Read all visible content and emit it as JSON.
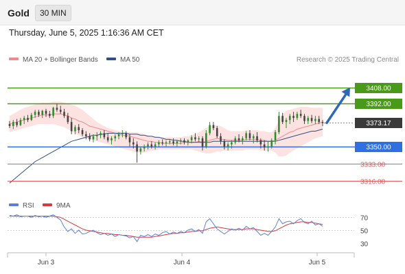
{
  "header": {
    "instrument": "Gold",
    "timeframe": "30 MIN"
  },
  "datetime": "Thursday, June 5, 2025 1:16:36 AM CET",
  "legend": {
    "bollinger": "MA 20 + Bollinger Bands",
    "ma50": "MA 50",
    "rsi": "RSI",
    "ma9": "9MA"
  },
  "watermark": "Research © 2025 Trading Central",
  "colors": {
    "up": "#2e8b2e",
    "down": "#444444",
    "resistance": "#4a9a1a",
    "support": "#2f6fe0",
    "lower_support": "#e05a5a",
    "bollinger_fill": "#fde2e2",
    "ma20": "#f08a8a",
    "ma50": "#2d4f86",
    "rsi": "#5b7fd9",
    "ma9": "#d63a3a",
    "arrow": "#2f68b7"
  },
  "chart_data": [
    {
      "type": "candlestick",
      "x_ticks": [
        "Jun 3",
        "Jun 4",
        "Jun 5"
      ],
      "ylim": [
        3302,
        3430
      ],
      "last_price": "3373.17",
      "levels": [
        {
          "value": 3408,
          "label": "3408.00",
          "kind": "resistance"
        },
        {
          "value": 3392,
          "label": "3392.00",
          "kind": "resistance"
        },
        {
          "value": 3373.17,
          "label": "3373.17",
          "kind": "last"
        },
        {
          "value": 3350,
          "label": "3350.00",
          "kind": "support"
        },
        {
          "value": 3333,
          "label": "3333.00",
          "kind": "lower_support"
        },
        {
          "value": 3316,
          "label": "3316.00",
          "kind": "lower_support"
        }
      ],
      "projection": {
        "from": 3373.17,
        "to": 3408
      },
      "candles": [
        [
          3372,
          3375,
          3368,
          3370
        ],
        [
          3370,
          3376,
          3367,
          3374
        ],
        [
          3374,
          3377,
          3369,
          3371
        ],
        [
          3371,
          3378,
          3370,
          3376
        ],
        [
          3376,
          3380,
          3372,
          3378
        ],
        [
          3378,
          3381,
          3374,
          3376
        ],
        [
          3376,
          3383,
          3375,
          3381
        ],
        [
          3381,
          3386,
          3378,
          3384
        ],
        [
          3384,
          3386,
          3379,
          3381
        ],
        [
          3381,
          3386,
          3378,
          3385
        ],
        [
          3385,
          3387,
          3379,
          3382
        ],
        [
          3382,
          3385,
          3378,
          3380
        ],
        [
          3380,
          3389,
          3378,
          3388
        ],
        [
          3388,
          3392,
          3384,
          3386
        ],
        [
          3386,
          3390,
          3382,
          3384
        ],
        [
          3384,
          3387,
          3378,
          3380
        ],
        [
          3380,
          3383,
          3372,
          3374
        ],
        [
          3374,
          3378,
          3362,
          3365
        ],
        [
          3365,
          3371,
          3362,
          3369
        ],
        [
          3369,
          3372,
          3363,
          3366
        ],
        [
          3366,
          3368,
          3360,
          3362
        ],
        [
          3362,
          3365,
          3357,
          3360
        ],
        [
          3360,
          3363,
          3355,
          3357
        ],
        [
          3357,
          3362,
          3354,
          3360
        ],
        [
          3360,
          3364,
          3356,
          3361
        ],
        [
          3361,
          3365,
          3358,
          3363
        ],
        [
          3363,
          3366,
          3357,
          3359
        ],
        [
          3359,
          3363,
          3354,
          3356
        ],
        [
          3356,
          3360,
          3352,
          3358
        ],
        [
          3358,
          3362,
          3355,
          3360
        ],
        [
          3360,
          3364,
          3357,
          3362
        ],
        [
          3362,
          3366,
          3359,
          3363
        ],
        [
          3363,
          3365,
          3357,
          3359
        ],
        [
          3359,
          3362,
          3350,
          3354
        ],
        [
          3354,
          3358,
          3348,
          3352
        ],
        [
          3352,
          3355,
          3334,
          3345
        ],
        [
          3345,
          3350,
          3342,
          3348
        ],
        [
          3348,
          3352,
          3345,
          3350
        ],
        [
          3350,
          3354,
          3347,
          3352
        ],
        [
          3352,
          3355,
          3348,
          3350
        ],
        [
          3350,
          3354,
          3347,
          3352
        ],
        [
          3352,
          3356,
          3349,
          3354
        ],
        [
          3354,
          3357,
          3351,
          3353
        ],
        [
          3353,
          3356,
          3350,
          3354
        ],
        [
          3354,
          3357,
          3352,
          3355
        ],
        [
          3355,
          3358,
          3351,
          3353
        ],
        [
          3353,
          3356,
          3350,
          3355
        ],
        [
          3355,
          3358,
          3352,
          3356
        ],
        [
          3356,
          3358,
          3352,
          3354
        ],
        [
          3354,
          3357,
          3351,
          3356
        ],
        [
          3356,
          3361,
          3353,
          3359
        ],
        [
          3359,
          3363,
          3355,
          3357
        ],
        [
          3357,
          3360,
          3354,
          3358
        ],
        [
          3358,
          3360,
          3346,
          3350
        ],
        [
          3350,
          3366,
          3348,
          3363
        ],
        [
          3363,
          3374,
          3361,
          3371
        ],
        [
          3371,
          3374,
          3366,
          3368
        ],
        [
          3368,
          3370,
          3358,
          3360
        ],
        [
          3360,
          3363,
          3352,
          3355
        ],
        [
          3355,
          3357,
          3347,
          3350
        ],
        [
          3350,
          3354,
          3346,
          3352
        ],
        [
          3352,
          3356,
          3348,
          3354
        ],
        [
          3354,
          3360,
          3352,
          3358
        ],
        [
          3358,
          3362,
          3354,
          3356
        ],
        [
          3356,
          3360,
          3352,
          3358
        ],
        [
          3358,
          3365,
          3356,
          3363
        ],
        [
          3363,
          3366,
          3356,
          3358
        ],
        [
          3358,
          3362,
          3353,
          3360
        ],
        [
          3360,
          3364,
          3354,
          3356
        ],
        [
          3356,
          3358,
          3348,
          3352
        ],
        [
          3352,
          3356,
          3346,
          3349
        ],
        [
          3349,
          3355,
          3345,
          3350
        ],
        [
          3350,
          3358,
          3348,
          3356
        ],
        [
          3356,
          3366,
          3352,
          3364
        ],
        [
          3364,
          3384,
          3362,
          3380
        ],
        [
          3380,
          3383,
          3372,
          3374
        ],
        [
          3374,
          3378,
          3368,
          3376
        ],
        [
          3376,
          3382,
          3372,
          3380
        ],
        [
          3380,
          3384,
          3374,
          3378
        ],
        [
          3378,
          3384,
          3376,
          3382
        ],
        [
          3382,
          3386,
          3378,
          3380
        ],
        [
          3380,
          3382,
          3372,
          3375
        ],
        [
          3375,
          3380,
          3372,
          3378
        ],
        [
          3378,
          3381,
          3373,
          3375
        ],
        [
          3375,
          3380,
          3372,
          3377
        ],
        [
          3377,
          3380,
          3372,
          3374
        ],
        [
          3374,
          3376,
          3370,
          3373
        ]
      ],
      "ma20": [
        3372,
        3373,
        3374,
        3375,
        3376,
        3377,
        3378,
        3379,
        3380,
        3381,
        3381,
        3381,
        3382,
        3382,
        3382,
        3381,
        3380,
        3378,
        3377,
        3375,
        3374,
        3372,
        3370,
        3369,
        3368,
        3367,
        3366,
        3365,
        3364,
        3363,
        3362,
        3361,
        3361,
        3360,
        3359,
        3358,
        3357,
        3356,
        3355,
        3355,
        3354,
        3354,
        3353,
        3353,
        3353,
        3353,
        3353,
        3353,
        3354,
        3354,
        3354,
        3354,
        3355,
        3354,
        3355,
        3356,
        3357,
        3358,
        3357,
        3357,
        3356,
        3356,
        3356,
        3356,
        3356,
        3357,
        3357,
        3357,
        3357,
        3356,
        3356,
        3355,
        3355,
        3356,
        3358,
        3360,
        3362,
        3364,
        3365,
        3367,
        3368,
        3369,
        3370,
        3371,
        3372,
        3373,
        3374
      ],
      "bb_upper": [
        3380,
        3382,
        3384,
        3386,
        3388,
        3389,
        3390,
        3391,
        3392,
        3393,
        3393,
        3393,
        3394,
        3394,
        3394,
        3393,
        3392,
        3391,
        3390,
        3388,
        3386,
        3383,
        3380,
        3377,
        3374,
        3372,
        3370,
        3368,
        3367,
        3366,
        3365,
        3364,
        3364,
        3364,
        3364,
        3364,
        3363,
        3362,
        3361,
        3360,
        3360,
        3359,
        3359,
        3359,
        3359,
        3359,
        3359,
        3359,
        3360,
        3360,
        3361,
        3362,
        3364,
        3366,
        3368,
        3370,
        3371,
        3371,
        3370,
        3368,
        3366,
        3365,
        3365,
        3365,
        3365,
        3366,
        3366,
        3366,
        3366,
        3365,
        3365,
        3364,
        3364,
        3368,
        3376,
        3382,
        3385,
        3386,
        3387,
        3388,
        3389,
        3389,
        3389,
        3388,
        3388,
        3388,
        3388
      ],
      "bb_lower": [
        3364,
        3365,
        3366,
        3367,
        3368,
        3369,
        3370,
        3371,
        3372,
        3372,
        3372,
        3372,
        3372,
        3371,
        3370,
        3369,
        3367,
        3365,
        3363,
        3361,
        3359,
        3358,
        3357,
        3356,
        3355,
        3354,
        3353,
        3352,
        3351,
        3350,
        3349,
        3348,
        3347,
        3346,
        3345,
        3344,
        3344,
        3344,
        3345,
        3346,
        3346,
        3347,
        3347,
        3347,
        3347,
        3347,
        3347,
        3347,
        3347,
        3347,
        3347,
        3346,
        3345,
        3344,
        3343,
        3343,
        3344,
        3345,
        3345,
        3346,
        3346,
        3346,
        3346,
        3346,
        3346,
        3347,
        3347,
        3347,
        3347,
        3346,
        3346,
        3346,
        3346,
        3344,
        3340,
        3340,
        3341,
        3344,
        3346,
        3348,
        3350,
        3352,
        3354,
        3356,
        3358,
        3359,
        3360
      ],
      "ma50": [
        3314,
        3317,
        3320,
        3323,
        3326,
        3329,
        3332,
        3335,
        3337,
        3339,
        3341,
        3343,
        3345,
        3347,
        3349,
        3351,
        3353,
        3355,
        3356,
        3357,
        3358,
        3359,
        3360,
        3361,
        3361,
        3362,
        3362,
        3363,
        3363,
        3363,
        3363,
        3363,
        3363,
        3362,
        3362,
        3362,
        3361,
        3361,
        3360,
        3360,
        3359,
        3359,
        3358,
        3357,
        3357,
        3356,
        3356,
        3355,
        3355,
        3354,
        3354,
        3354,
        3354,
        3354,
        3354,
        3354,
        3355,
        3355,
        3355,
        3355,
        3355,
        3355,
        3355,
        3355,
        3355,
        3355,
        3355,
        3355,
        3355,
        3355,
        3355,
        3355,
        3355,
        3355,
        3356,
        3357,
        3358,
        3359,
        3360,
        3361,
        3362,
        3363,
        3364,
        3365,
        3365,
        3366,
        3367
      ]
    },
    {
      "type": "line",
      "yticks": [
        70,
        50,
        30
      ],
      "ylim": [
        20,
        80
      ],
      "series": [
        {
          "name": "RSI",
          "values": [
            73,
            72,
            74,
            71,
            72,
            72,
            70,
            73,
            71,
            72,
            70,
            72,
            74,
            70,
            66,
            55,
            48,
            52,
            45,
            50,
            44,
            45,
            48,
            50,
            46,
            43,
            45,
            42,
            44,
            40,
            43,
            42,
            41,
            38,
            40,
            32,
            42,
            40,
            43,
            40,
            44,
            42,
            46,
            48,
            44,
            47,
            45,
            48,
            46,
            50,
            52,
            48,
            51,
            45,
            63,
            68,
            60,
            52,
            48,
            44,
            48,
            52,
            50,
            53,
            50,
            56,
            52,
            54,
            48,
            42,
            45,
            42,
            48,
            55,
            68,
            60,
            63,
            64,
            60,
            65,
            68,
            62,
            60,
            64,
            58,
            60,
            56
          ]
        },
        {
          "name": "9MA",
          "values": [
            72,
            72,
            72,
            72,
            72,
            72,
            72,
            72,
            72,
            72,
            72,
            72,
            72,
            71,
            70,
            67,
            64,
            61,
            58,
            55,
            52,
            50,
            49,
            48,
            47,
            46,
            45,
            45,
            44,
            43,
            43,
            42,
            42,
            41,
            40,
            39,
            39,
            39,
            39,
            39,
            40,
            41,
            42,
            43,
            44,
            45,
            45,
            46,
            46,
            47,
            48,
            48,
            49,
            49,
            51,
            53,
            54,
            55,
            54,
            53,
            52,
            51,
            51,
            51,
            51,
            52,
            52,
            52,
            51,
            50,
            49,
            48,
            48,
            49,
            52,
            55,
            58,
            60,
            61,
            62,
            63,
            63,
            62,
            62,
            61,
            60,
            59
          ]
        }
      ]
    }
  ]
}
